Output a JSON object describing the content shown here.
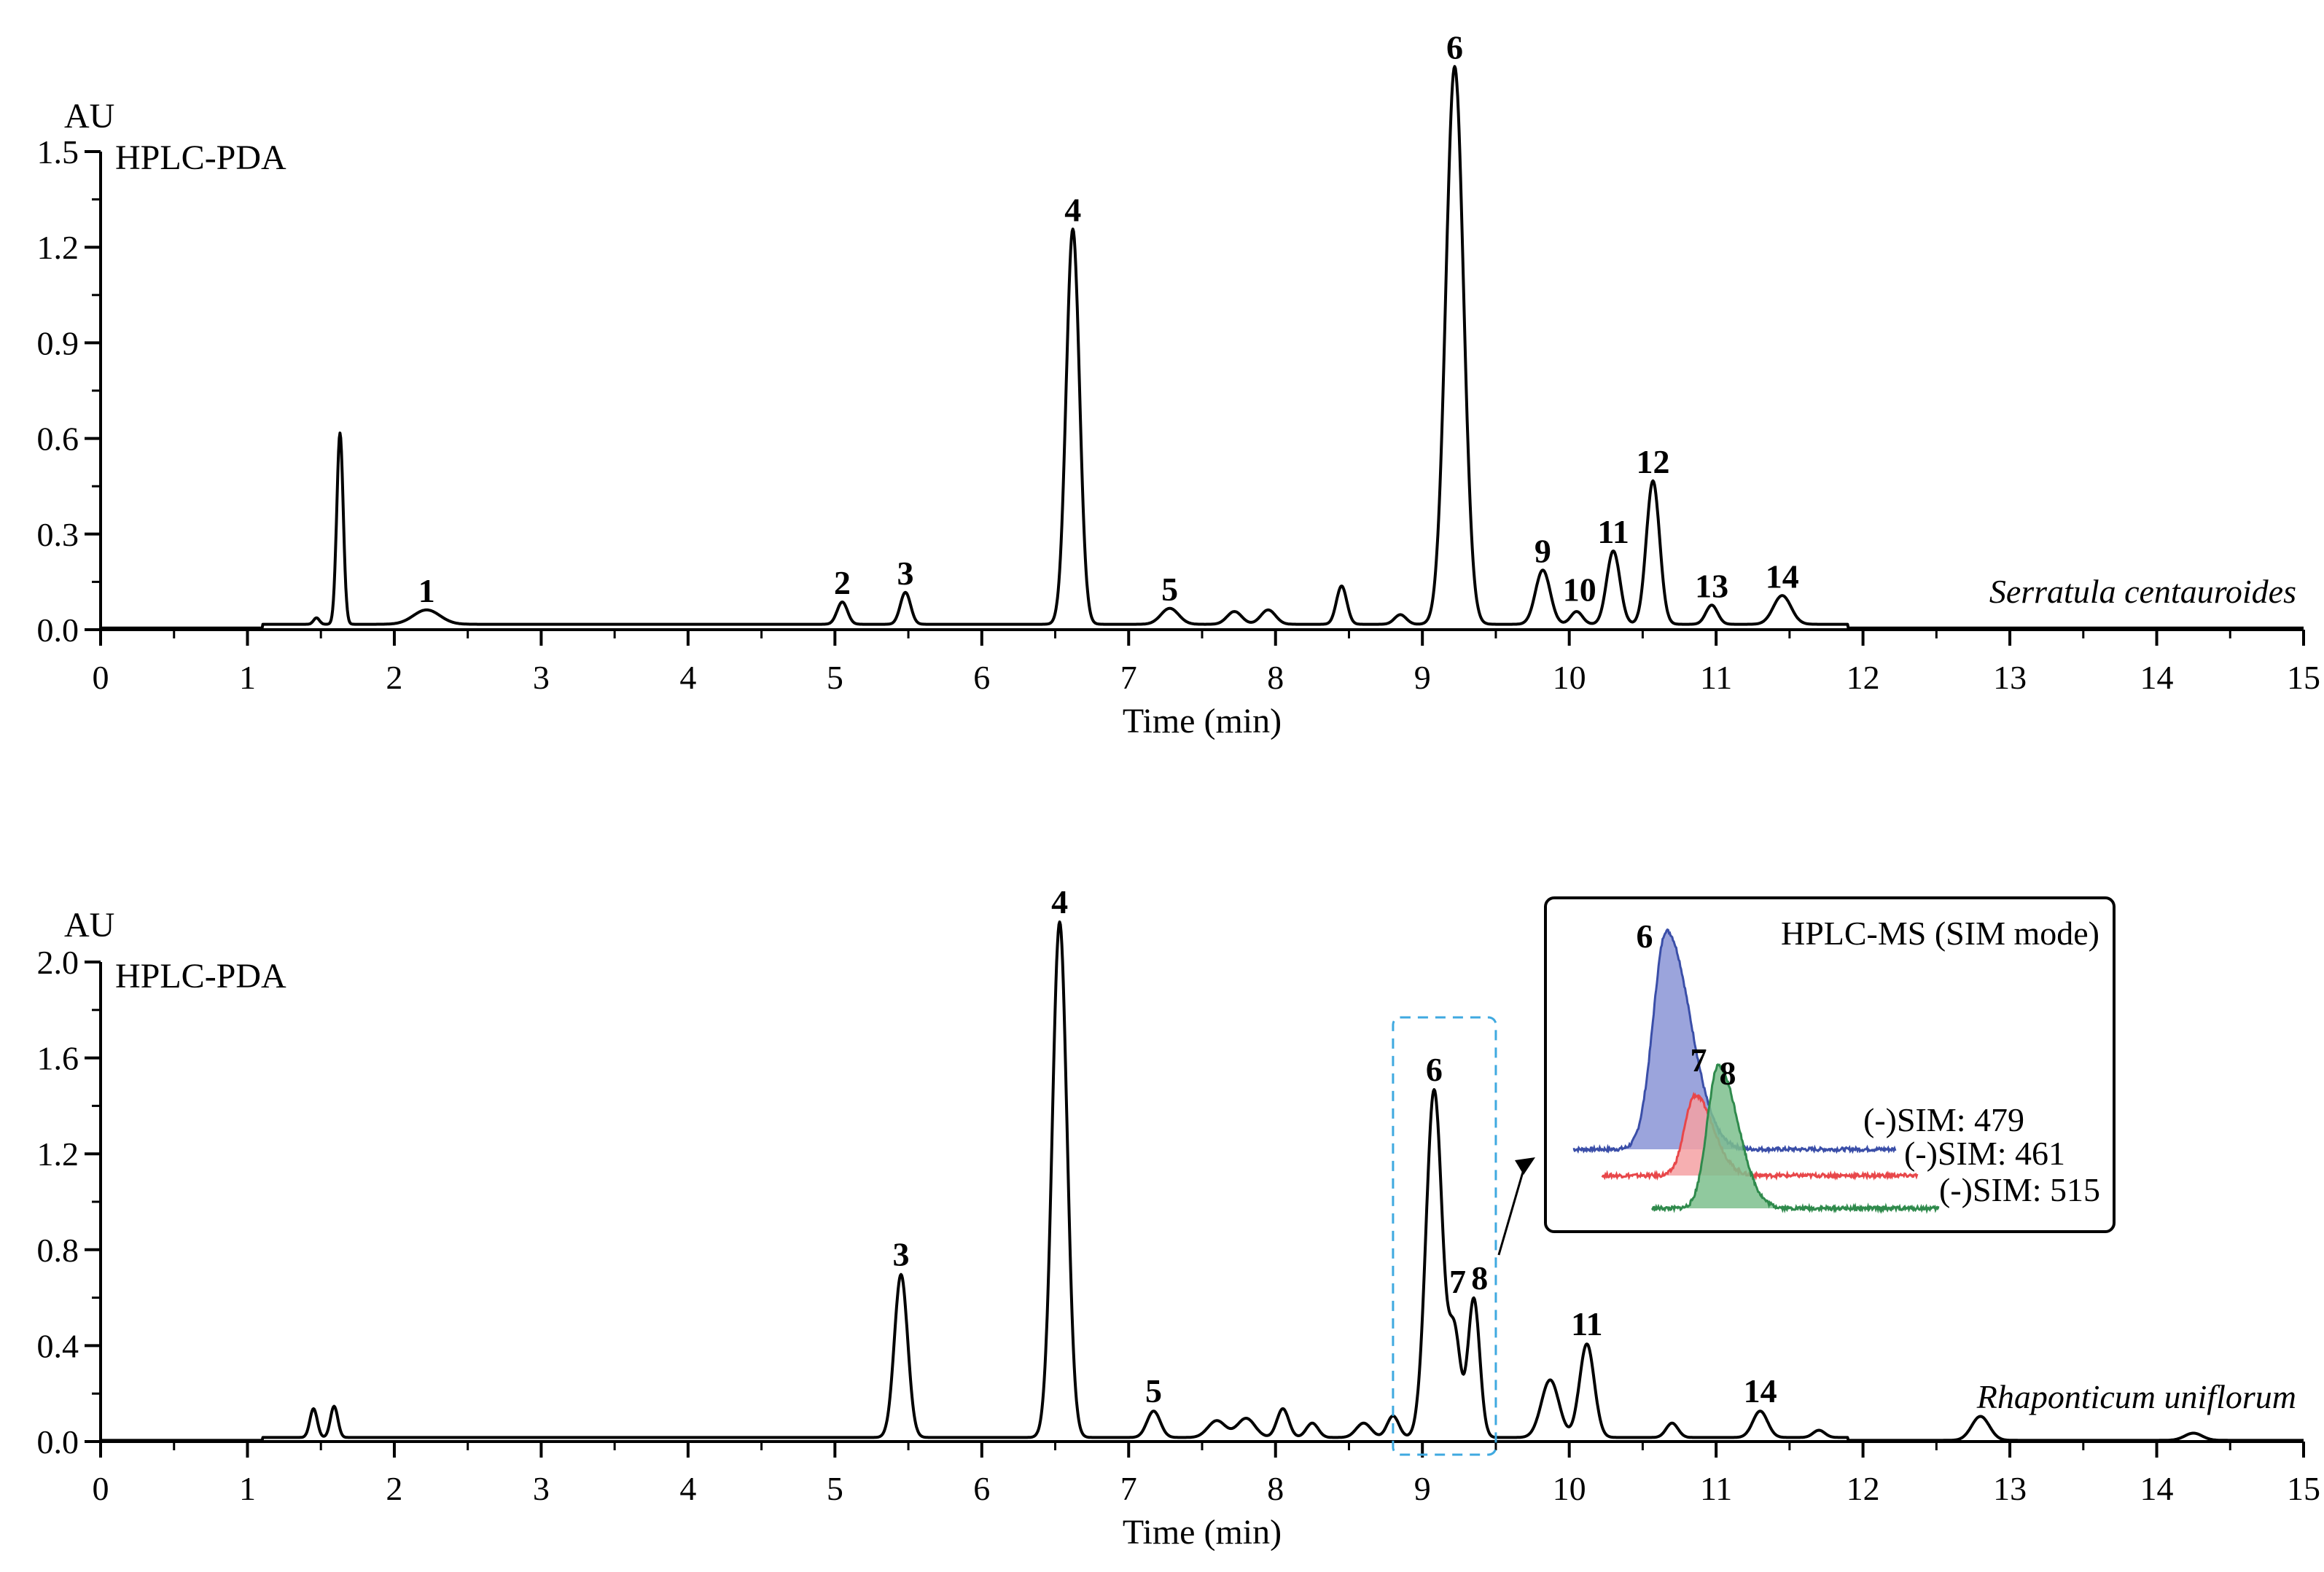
{
  "figure": {
    "x_axis_title": "Time (min)",
    "y_unit": "AU"
  },
  "chart_data": [
    {
      "type": "line",
      "panel_label": "HPLC-PDA",
      "species": "Serratula centauroides",
      "xlabel": "Time (min)",
      "ylabel": "AU",
      "xlim": [
        0,
        15
      ],
      "ylim": [
        0,
        1.5
      ],
      "x_ticks": [
        "0",
        "1",
        "2",
        "3",
        "4",
        "5",
        "6",
        "7",
        "8",
        "9",
        "10",
        "11",
        "12",
        "13",
        "14",
        "15"
      ],
      "y_ticks": [
        "0.0",
        "0.3",
        "0.6",
        "0.9",
        "1.2",
        "1.5"
      ],
      "grid": false,
      "baseline": 0.005,
      "peaks": [
        {
          "t": 1.47,
          "h": 0.02,
          "w": 0.02,
          "label": ""
        },
        {
          "t": 1.63,
          "h": 0.6,
          "w": 0.022,
          "label": ""
        },
        {
          "t": 2.22,
          "h": 0.045,
          "w": 0.09,
          "label": "1"
        },
        {
          "t": 5.05,
          "h": 0.07,
          "w": 0.035,
          "label": "2"
        },
        {
          "t": 5.48,
          "h": 0.1,
          "w": 0.035,
          "label": "3"
        },
        {
          "t": 6.62,
          "h": 1.24,
          "w": 0.045,
          "label": "4"
        },
        {
          "t": 7.28,
          "h": 0.05,
          "w": 0.06,
          "label": "5"
        },
        {
          "t": 7.72,
          "h": 0.04,
          "w": 0.05,
          "label": ""
        },
        {
          "t": 7.95,
          "h": 0.045,
          "w": 0.05,
          "label": ""
        },
        {
          "t": 8.45,
          "h": 0.12,
          "w": 0.035,
          "label": ""
        },
        {
          "t": 8.85,
          "h": 0.03,
          "w": 0.04,
          "label": ""
        },
        {
          "t": 9.22,
          "h": 1.75,
          "w": 0.06,
          "label": "6"
        },
        {
          "t": 9.82,
          "h": 0.17,
          "w": 0.05,
          "label": "9"
        },
        {
          "t": 10.05,
          "h": 0.04,
          "w": 0.04,
          "label": "10"
        },
        {
          "t": 10.3,
          "h": 0.23,
          "w": 0.045,
          "label": "11"
        },
        {
          "t": 10.57,
          "h": 0.45,
          "w": 0.045,
          "label": "12"
        },
        {
          "t": 10.97,
          "h": 0.06,
          "w": 0.04,
          "label": "13"
        },
        {
          "t": 11.45,
          "h": 0.09,
          "w": 0.06,
          "label": "14"
        }
      ]
    },
    {
      "type": "line",
      "panel_label": "HPLC-PDA",
      "species": "Rhaponticum uniflorum",
      "xlabel": "Time (min)",
      "ylabel": "AU",
      "xlim": [
        0,
        15
      ],
      "ylim": [
        0,
        2.0
      ],
      "x_ticks": [
        "0",
        "1",
        "2",
        "3",
        "4",
        "5",
        "6",
        "7",
        "8",
        "9",
        "10",
        "11",
        "12",
        "13",
        "14",
        "15"
      ],
      "y_ticks": [
        "0.0",
        "0.4",
        "0.8",
        "1.2",
        "1.6",
        "2.0"
      ],
      "grid": false,
      "baseline": 0.005,
      "peaks": [
        {
          "t": 1.45,
          "h": 0.12,
          "w": 0.025,
          "label": ""
        },
        {
          "t": 1.59,
          "h": 0.13,
          "w": 0.025,
          "label": ""
        },
        {
          "t": 5.45,
          "h": 0.68,
          "w": 0.045,
          "label": "3"
        },
        {
          "t": 6.53,
          "h": 2.15,
          "w": 0.05,
          "label": "4"
        },
        {
          "t": 7.17,
          "h": 0.11,
          "w": 0.045,
          "label": "5"
        },
        {
          "t": 7.6,
          "h": 0.07,
          "w": 0.06,
          "label": ""
        },
        {
          "t": 7.8,
          "h": 0.08,
          "w": 0.06,
          "label": ""
        },
        {
          "t": 8.05,
          "h": 0.12,
          "w": 0.04,
          "label": ""
        },
        {
          "t": 8.25,
          "h": 0.06,
          "w": 0.04,
          "label": ""
        },
        {
          "t": 8.6,
          "h": 0.06,
          "w": 0.05,
          "label": ""
        },
        {
          "t": 8.8,
          "h": 0.09,
          "w": 0.04,
          "label": ""
        },
        {
          "t": 9.08,
          "h": 1.45,
          "w": 0.055,
          "label": "6"
        },
        {
          "t": 9.22,
          "h": 0.42,
          "w": 0.04,
          "label": "7"
        },
        {
          "t": 9.35,
          "h": 0.58,
          "w": 0.04,
          "label": "8"
        },
        {
          "t": 9.87,
          "h": 0.24,
          "w": 0.06,
          "label": ""
        },
        {
          "t": 10.12,
          "h": 0.39,
          "w": 0.05,
          "label": "11"
        },
        {
          "t": 10.7,
          "h": 0.06,
          "w": 0.04,
          "label": ""
        },
        {
          "t": 11.3,
          "h": 0.11,
          "w": 0.05,
          "label": "14"
        },
        {
          "t": 11.7,
          "h": 0.03,
          "w": 0.04,
          "label": ""
        },
        {
          "t": 12.8,
          "h": 0.1,
          "w": 0.06,
          "label": ""
        },
        {
          "t": 14.25,
          "h": 0.03,
          "w": 0.06,
          "label": ""
        }
      ],
      "highlight_window": [
        8.8,
        9.5
      ],
      "inset": {
        "title": "HPLC-MS (SIM mode)",
        "traces": [
          {
            "label": "(-)SIM: 479",
            "peak": "6",
            "color": "#3a4ea8",
            "fill": "#8a94d6"
          },
          {
            "label": "(-)SIM: 461",
            "peak": "7",
            "color": "#e8474a",
            "fill": "#f4a1a3"
          },
          {
            "label": "(-)SIM: 515",
            "peak": "8",
            "color": "#2f8a4c",
            "fill": "#7cc08d"
          }
        ]
      }
    }
  ]
}
